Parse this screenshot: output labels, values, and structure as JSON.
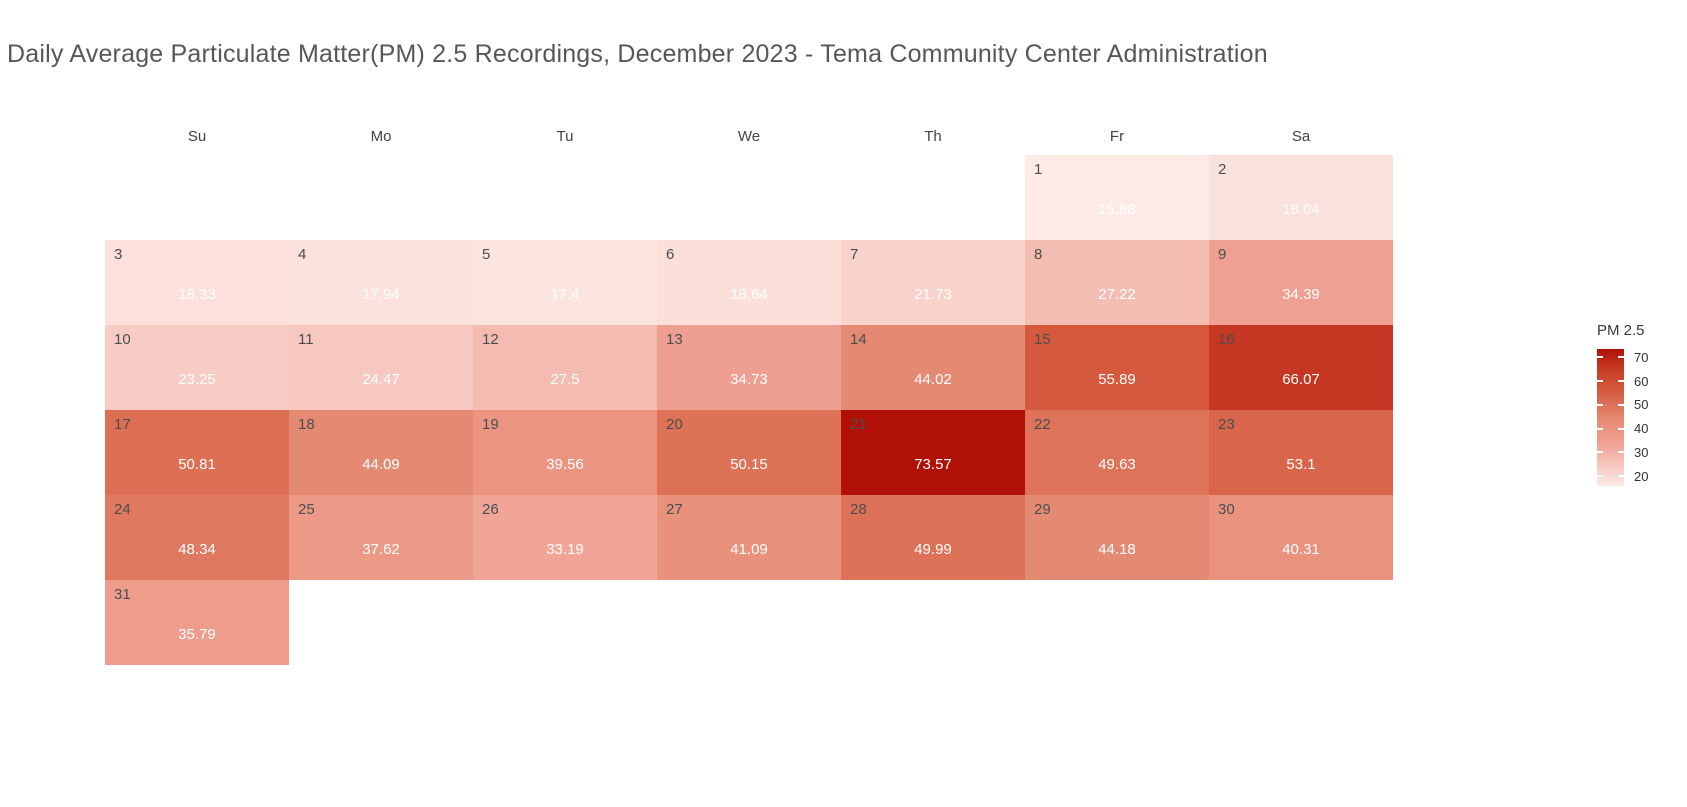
{
  "chart_data": {
    "type": "heatmap",
    "subtype": "calendar-heatmap",
    "title": "Daily Average Particulate Matter(PM) 2.5 Recordings, December 2023 - Tema Community Center Administration",
    "month": "December 2023",
    "weekday_labels": [
      "Su",
      "Mo",
      "Tu",
      "We",
      "Th",
      "Fr",
      "Sa"
    ],
    "first_day_weekday_index": 5,
    "legend": {
      "title": "PM 2.5",
      "ticks": [
        70,
        60,
        50,
        40,
        30,
        20
      ]
    },
    "scale": {
      "min": 15.88,
      "max": 73.57,
      "colormap_stops": [
        {
          "t": 0.0,
          "color": "#fdeae6"
        },
        {
          "t": 0.32,
          "color": "#efa092"
        },
        {
          "t": 0.49,
          "color": "#e58a72"
        },
        {
          "t": 0.69,
          "color": "#d55b3e"
        },
        {
          "t": 0.87,
          "color": "#c53722"
        },
        {
          "t": 1.0,
          "color": "#b01005"
        }
      ],
      "day_number_color": "#4a4e50",
      "value_text_color": "#ffffff"
    },
    "days": [
      {
        "day": 1,
        "value": 15.88,
        "label": "15.88"
      },
      {
        "day": 2,
        "value": 18.04,
        "label": "18.04"
      },
      {
        "day": 3,
        "value": 18.33,
        "label": "18.33"
      },
      {
        "day": 4,
        "value": 17.94,
        "label": "17.94"
      },
      {
        "day": 5,
        "value": 17.4,
        "label": "17.4"
      },
      {
        "day": 6,
        "value": 18.64,
        "label": "18.64"
      },
      {
        "day": 7,
        "value": 21.73,
        "label": "21.73"
      },
      {
        "day": 8,
        "value": 27.22,
        "label": "27.22"
      },
      {
        "day": 9,
        "value": 34.39,
        "label": "34.39"
      },
      {
        "day": 10,
        "value": 23.25,
        "label": "23.25"
      },
      {
        "day": 11,
        "value": 24.47,
        "label": "24.47"
      },
      {
        "day": 12,
        "value": 27.5,
        "label": "27.5"
      },
      {
        "day": 13,
        "value": 34.73,
        "label": "34.73"
      },
      {
        "day": 14,
        "value": 44.02,
        "label": "44.02"
      },
      {
        "day": 15,
        "value": 55.89,
        "label": "55.89"
      },
      {
        "day": 16,
        "value": 66.07,
        "label": "66.07"
      },
      {
        "day": 17,
        "value": 50.81,
        "label": "50.81"
      },
      {
        "day": 18,
        "value": 44.09,
        "label": "44.09"
      },
      {
        "day": 19,
        "value": 39.56,
        "label": "39.56"
      },
      {
        "day": 20,
        "value": 50.15,
        "label": "50.15"
      },
      {
        "day": 21,
        "value": 73.57,
        "label": "73.57"
      },
      {
        "day": 22,
        "value": 49.63,
        "label": "49.63"
      },
      {
        "day": 23,
        "value": 53.1,
        "label": "53.1"
      },
      {
        "day": 24,
        "value": 48.34,
        "label": "48.34"
      },
      {
        "day": 25,
        "value": 37.62,
        "label": "37.62"
      },
      {
        "day": 26,
        "value": 33.19,
        "label": "33.19"
      },
      {
        "day": 27,
        "value": 41.09,
        "label": "41.09"
      },
      {
        "day": 28,
        "value": 49.99,
        "label": "49.99"
      },
      {
        "day": 29,
        "value": 44.18,
        "label": "44.18"
      },
      {
        "day": 30,
        "value": 40.31,
        "label": "40.31"
      },
      {
        "day": 31,
        "value": 35.79,
        "label": "35.79"
      }
    ]
  }
}
